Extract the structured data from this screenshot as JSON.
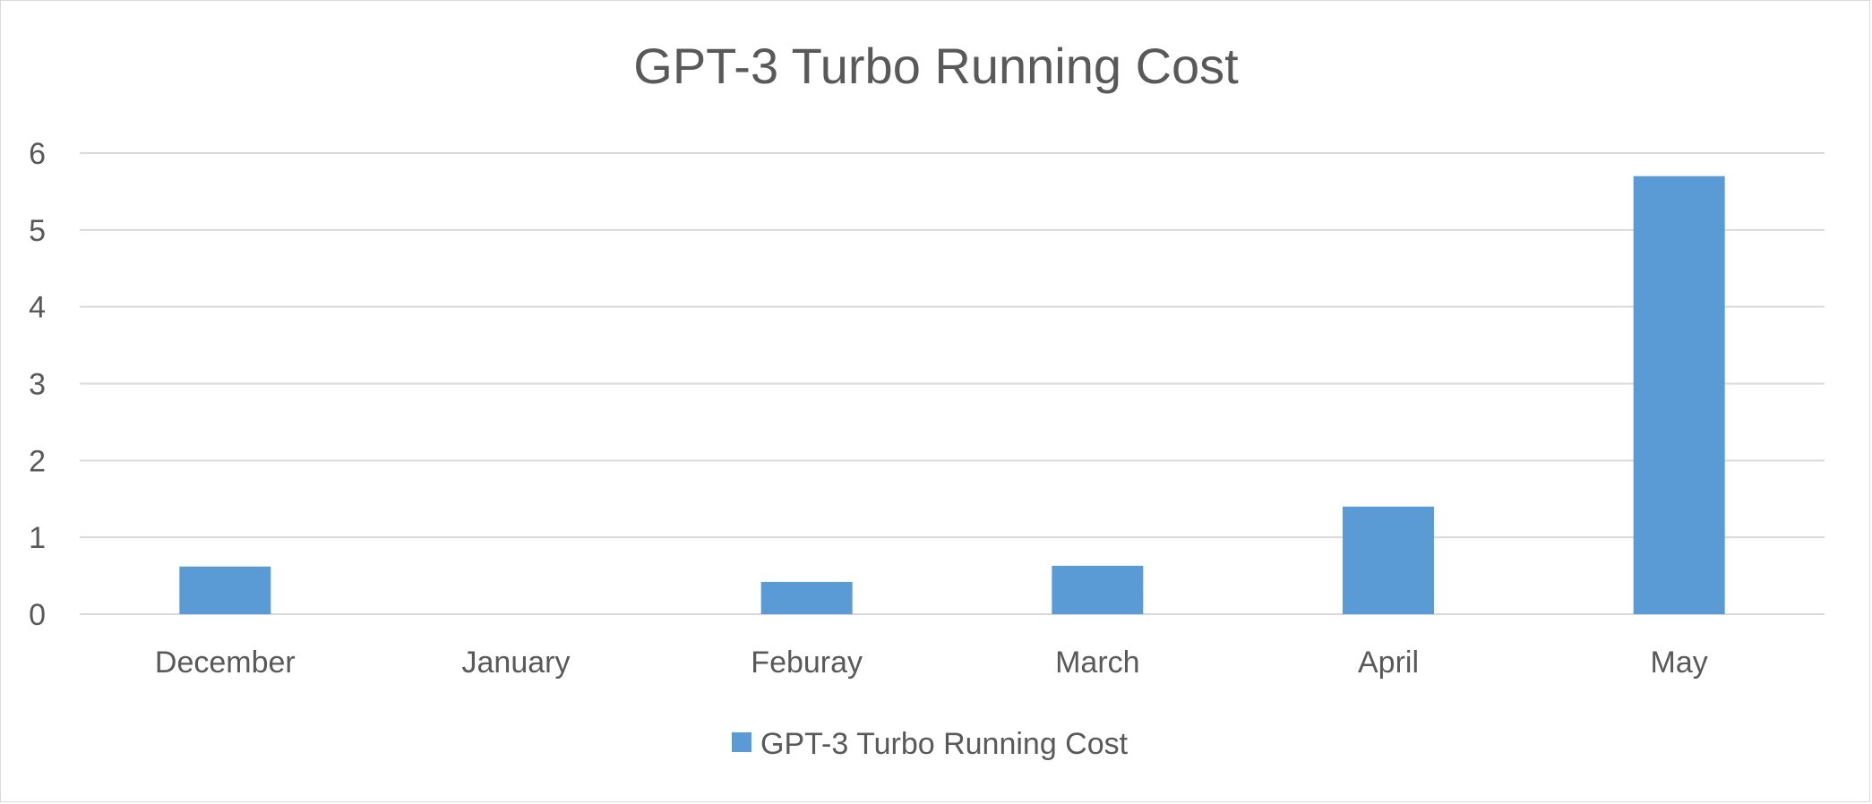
{
  "chart_data": {
    "type": "bar",
    "title": "GPT-3 Turbo Running Cost",
    "xlabel": "",
    "ylabel": "",
    "categories": [
      "December",
      "January",
      "Feburay",
      "March",
      "April",
      "May"
    ],
    "series": [
      {
        "name": "GPT-3 Turbo Running Cost",
        "values": [
          0.62,
          0,
          0.42,
          0.63,
          1.4,
          5.7
        ],
        "color": "#5b9bd5"
      }
    ],
    "ylim": [
      0,
      6
    ],
    "yticks": [
      "0",
      "1",
      "2",
      "3",
      "4",
      "5",
      "6"
    ],
    "grid": true,
    "legend_position": "bottom"
  },
  "colors": {
    "text": "#595959",
    "grid": "#d9d9d9",
    "border": "#d9d9d9"
  }
}
